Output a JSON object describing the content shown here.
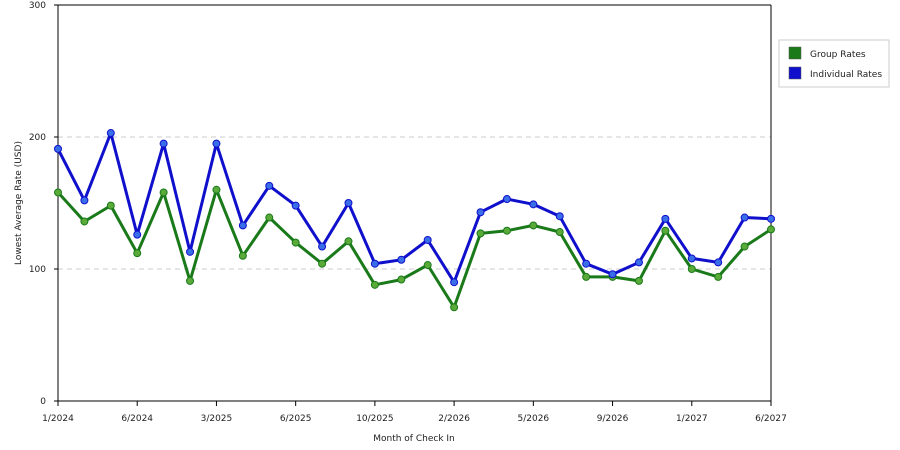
{
  "chart_data": {
    "type": "line",
    "title": "",
    "xlabel": "Month of Check In",
    "ylabel": "Lowest Average Rate (USD)",
    "ylim": [
      0,
      300
    ],
    "yticks": [
      0,
      100,
      200,
      300
    ],
    "grid": true,
    "legend_position": "right",
    "x_tick_labels": [
      "1/2024",
      "6/2024",
      "3/2025",
      "6/2025",
      "10/2025",
      "2/2026",
      "5/2026",
      "9/2026",
      "1/2027",
      "6/2027"
    ],
    "x_tick_positions": [
      0,
      3,
      6,
      9,
      12,
      15,
      18,
      21,
      24,
      27
    ],
    "point_count": 28,
    "series": [
      {
        "name": "Group Rates",
        "color": "#1a7a1a",
        "marker_color": "#5aaa3a",
        "values": [
          158,
          136,
          148,
          112,
          158,
          91,
          160,
          110,
          139,
          120,
          104,
          121,
          88,
          92,
          103,
          71,
          127,
          129,
          133,
          128,
          94,
          94,
          91,
          129,
          100,
          94,
          117,
          130
        ]
      },
      {
        "name": "Individual Rates",
        "color": "#1010cc",
        "marker_color": "#3a6ee8",
        "values": [
          191,
          152,
          203,
          126,
          195,
          113,
          195,
          133,
          163,
          148,
          117,
          150,
          104,
          107,
          122,
          90,
          143,
          153,
          149,
          140,
          104,
          96,
          105,
          138,
          108,
          105,
          139,
          138
        ]
      }
    ]
  }
}
